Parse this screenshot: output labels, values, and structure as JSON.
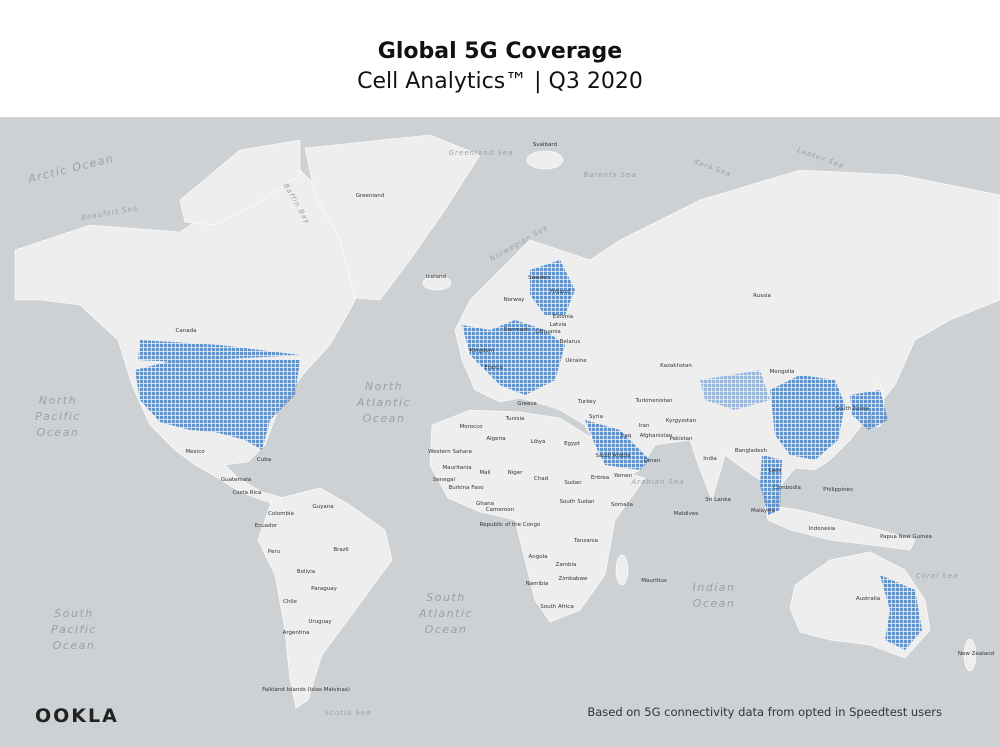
{
  "header": {
    "title": "Global 5G Coverage",
    "subtitle": "Cell Analytics™ | Q3 2020"
  },
  "map": {
    "oceans": [
      {
        "lines": [
          "Arctic Ocean"
        ]
      },
      {
        "lines": [
          "North",
          "Pacific",
          "Ocean"
        ]
      },
      {
        "lines": [
          "North",
          "Atlantic",
          "Ocean"
        ]
      },
      {
        "lines": [
          "South",
          "Atlantic",
          "Ocean"
        ]
      },
      {
        "lines": [
          "Indian",
          "Ocean"
        ]
      },
      {
        "lines": [
          "South",
          "Pacific",
          "Ocean"
        ]
      }
    ],
    "seas": [
      "Greenland Sea",
      "Barents Sea",
      "Laptev Sea",
      "Kara Sea",
      "Baffin Bay",
      "Beaufort Sea",
      "Norwegian Sea",
      "Arabian Sea",
      "Coral Sea",
      "Scotia Sea"
    ],
    "places": [
      "Greenland",
      "Svalbard",
      "Iceland",
      "Canada",
      "Russia",
      "Sweden",
      "Finland",
      "Norway",
      "Estonia",
      "Latvia",
      "Lithuania",
      "Denmark",
      "Belarus",
      "Ukraine",
      "Kingdom",
      "France",
      "Greece",
      "Turkey",
      "Kazakhstan",
      "Mongolia",
      "Turkmenistan",
      "Kyrgyzstan",
      "Afghanistan",
      "Pakistan",
      "India",
      "Bangladesh",
      "Iran",
      "Syria",
      "Iraq",
      "Saudi Arabia",
      "Oman",
      "Yemen",
      "Eritrea",
      "Egypt",
      "Libya",
      "Algeria",
      "Tunisia",
      "Morocco",
      "Western Sahara",
      "Mauritania",
      "Mali",
      "Niger",
      "Chad",
      "Sudan",
      "South Sudan",
      "Senegal",
      "Burkina Faso",
      "Ghana",
      "Cameroon",
      "Republic of the Congo",
      "Tanzania",
      "Angola",
      "Zambia",
      "Zimbabwe",
      "Namibia",
      "South Africa",
      "Somalia",
      "Mauritius",
      "Maldives",
      "Sri Lanka",
      "Malaysia",
      "Cambodia",
      "Philippines",
      "Indonesia",
      "Papua New Guinea",
      "Australia",
      "New Zealand",
      "Mexico",
      "Cuba",
      "Guatemala",
      "Costa Rica",
      "Colombia",
      "Ecuador",
      "Guyana",
      "Peru",
      "Brazil",
      "Bolivia",
      "Paraguay",
      "Chile",
      "Uruguay",
      "Argentina",
      "Falkland Islands (Islas Malvinas)",
      "South Korea",
      "Laos"
    ]
  },
  "footer": {
    "logo": "OOKLA",
    "note": "Based on 5G connectivity data from opted in Speedtest users"
  }
}
